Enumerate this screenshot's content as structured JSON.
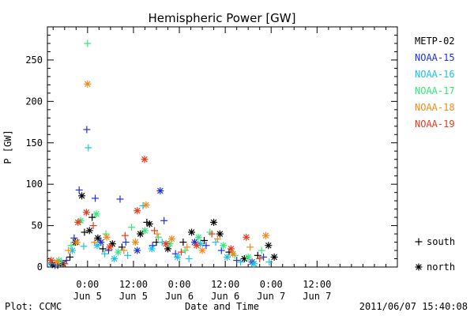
{
  "chart_data": {
    "type": "scatter",
    "title": "Hemispheric Power [GW]",
    "xlabel": "Date and Time",
    "ylabel": "P [GW]",
    "x_unit": "hours",
    "x_range": [
      -10.5,
      81
    ],
    "ylim": [
      0,
      290
    ],
    "y_ticks": [
      0,
      50,
      100,
      150,
      200,
      250
    ],
    "x_ticks": [
      {
        "h": 0,
        "time": "0:00",
        "date": "Jun 5"
      },
      {
        "h": 12,
        "time": "12:00",
        "date": "Jun 5"
      },
      {
        "h": 24,
        "time": "0:00",
        "date": "Jun 6"
      },
      {
        "h": 36,
        "time": "12:00",
        "date": "Jun 6"
      },
      {
        "h": 48,
        "time": "0:00",
        "date": "Jun 7"
      },
      {
        "h": 60,
        "time": "12:00",
        "date": "Jun 7"
      }
    ],
    "grid": false,
    "legend_position": "right",
    "markers": [
      {
        "symbol": "+",
        "label": "south"
      },
      {
        "symbol": "*",
        "label": "north"
      }
    ],
    "series": [
      {
        "name": "METP-02",
        "color": "#000000",
        "points": [
          {
            "x": -9.2,
            "y": 3,
            "m": "*"
          },
          {
            "x": -7.8,
            "y": 2,
            "m": "+"
          },
          {
            "x": -6.4,
            "y": 4,
            "m": "*"
          },
          {
            "x": -4.6,
            "y": 12,
            "m": "+"
          },
          {
            "x": -3.2,
            "y": 30,
            "m": "*"
          },
          {
            "x": -1.5,
            "y": 86,
            "m": "*"
          },
          {
            "x": -0.8,
            "y": 42,
            "m": "+"
          },
          {
            "x": 0.5,
            "y": 44,
            "m": "*"
          },
          {
            "x": 1.2,
            "y": 60,
            "m": "+"
          },
          {
            "x": 2.7,
            "y": 35,
            "m": "*"
          },
          {
            "x": 4.0,
            "y": 22,
            "m": "+"
          },
          {
            "x": 6.5,
            "y": 28,
            "m": "*"
          },
          {
            "x": 9.0,
            "y": 24,
            "m": "+"
          },
          {
            "x": 13.8,
            "y": 40,
            "m": "*"
          },
          {
            "x": 15.5,
            "y": 54,
            "m": "+"
          },
          {
            "x": 16.2,
            "y": 52,
            "m": "*"
          },
          {
            "x": 18.0,
            "y": 30,
            "m": "+"
          },
          {
            "x": 21.0,
            "y": 22,
            "m": "*"
          },
          {
            "x": 25.0,
            "y": 30,
            "m": "+"
          },
          {
            "x": 27.2,
            "y": 42,
            "m": "*"
          },
          {
            "x": 30.5,
            "y": 32,
            "m": "+"
          },
          {
            "x": 33.0,
            "y": 54,
            "m": "*"
          },
          {
            "x": 34.6,
            "y": 40,
            "m": "*"
          },
          {
            "x": 37.0,
            "y": 18,
            "m": "+"
          },
          {
            "x": 41.0,
            "y": 10,
            "m": "*"
          },
          {
            "x": 44.5,
            "y": 14,
            "m": "+"
          },
          {
            "x": 47.3,
            "y": 26,
            "m": "*"
          },
          {
            "x": 48.8,
            "y": 12,
            "m": "*"
          }
        ]
      },
      {
        "name": "NOAA-15",
        "color": "#1f2fd6",
        "points": [
          {
            "x": -8.5,
            "y": 2,
            "m": "+"
          },
          {
            "x": -5.5,
            "y": 8,
            "m": "+"
          },
          {
            "x": -3.5,
            "y": 35,
            "m": "+"
          },
          {
            "x": -2.2,
            "y": 93,
            "m": "+"
          },
          {
            "x": -0.2,
            "y": 166,
            "m": "+"
          },
          {
            "x": 2.0,
            "y": 83,
            "m": "+"
          },
          {
            "x": 3.5,
            "y": 30,
            "m": "*"
          },
          {
            "x": 5.5,
            "y": 20,
            "m": "+"
          },
          {
            "x": 8.5,
            "y": 82,
            "m": "+"
          },
          {
            "x": 10.0,
            "y": 30,
            "m": "+"
          },
          {
            "x": 13.0,
            "y": 20,
            "m": "*"
          },
          {
            "x": 17.0,
            "y": 26,
            "m": "+"
          },
          {
            "x": 19.0,
            "y": 92,
            "m": "*"
          },
          {
            "x": 20.0,
            "y": 56,
            "m": "+"
          },
          {
            "x": 23.0,
            "y": 16,
            "m": "+"
          },
          {
            "x": 28.0,
            "y": 30,
            "m": "*"
          },
          {
            "x": 31.0,
            "y": 26,
            "m": "+"
          },
          {
            "x": 35.0,
            "y": 20,
            "m": "+"
          },
          {
            "x": 39.0,
            "y": 8,
            "m": "+"
          },
          {
            "x": 43.0,
            "y": 6,
            "m": "*"
          },
          {
            "x": 46.0,
            "y": 12,
            "m": "+"
          }
        ]
      },
      {
        "name": "NOAA-16",
        "color": "#19c3e6",
        "points": [
          {
            "x": -9.8,
            "y": 4,
            "m": "+"
          },
          {
            "x": -6.8,
            "y": 6,
            "m": "+"
          },
          {
            "x": -4.0,
            "y": 20,
            "m": "*"
          },
          {
            "x": -1.0,
            "y": 25,
            "m": "+"
          },
          {
            "x": 0.2,
            "y": 144,
            "m": "+"
          },
          {
            "x": 2.5,
            "y": 26,
            "m": "*"
          },
          {
            "x": 4.5,
            "y": 16,
            "m": "+"
          },
          {
            "x": 7.0,
            "y": 10,
            "m": "*"
          },
          {
            "x": 10.5,
            "y": 14,
            "m": "+"
          },
          {
            "x": 14.5,
            "y": 74,
            "m": "+"
          },
          {
            "x": 16.8,
            "y": 22,
            "m": "*"
          },
          {
            "x": 19.5,
            "y": 30,
            "m": "+"
          },
          {
            "x": 23.5,
            "y": 12,
            "m": "*"
          },
          {
            "x": 26.5,
            "y": 10,
            "m": "+"
          },
          {
            "x": 29.5,
            "y": 28,
            "m": "*"
          },
          {
            "x": 33.5,
            "y": 30,
            "m": "+"
          },
          {
            "x": 36.5,
            "y": 12,
            "m": "*"
          },
          {
            "x": 40.0,
            "y": 6,
            "m": "+"
          },
          {
            "x": 43.5,
            "y": 4,
            "m": "*"
          },
          {
            "x": 47.5,
            "y": 6,
            "m": "+"
          }
        ]
      },
      {
        "name": "NOAA-17",
        "color": "#33e67a",
        "points": [
          {
            "x": -7.5,
            "y": 8,
            "m": "*"
          },
          {
            "x": -4.3,
            "y": 26,
            "m": "+"
          },
          {
            "x": -1.8,
            "y": 56,
            "m": "*"
          },
          {
            "x": 0.0,
            "y": 270,
            "m": "+"
          },
          {
            "x": 2.3,
            "y": 64,
            "m": "*"
          },
          {
            "x": 4.8,
            "y": 40,
            "m": "+"
          },
          {
            "x": 8.0,
            "y": 18,
            "m": "*"
          },
          {
            "x": 11.5,
            "y": 48,
            "m": "+"
          },
          {
            "x": 15.0,
            "y": 44,
            "m": "*"
          },
          {
            "x": 18.5,
            "y": 36,
            "m": "+"
          },
          {
            "x": 21.5,
            "y": 28,
            "m": "*"
          },
          {
            "x": 25.5,
            "y": 20,
            "m": "+"
          },
          {
            "x": 29.0,
            "y": 36,
            "m": "*"
          },
          {
            "x": 32.0,
            "y": 42,
            "m": "+"
          },
          {
            "x": 35.5,
            "y": 26,
            "m": "*"
          },
          {
            "x": 38.5,
            "y": 14,
            "m": "+"
          },
          {
            "x": 42.0,
            "y": 12,
            "m": "*"
          },
          {
            "x": 45.5,
            "y": 20,
            "m": "+"
          }
        ]
      },
      {
        "name": "NOAA-18",
        "color": "#f08a1a",
        "points": [
          {
            "x": -8.0,
            "y": 6,
            "m": "*"
          },
          {
            "x": -5.0,
            "y": 20,
            "m": "+"
          },
          {
            "x": -2.8,
            "y": 30,
            "m": "*"
          },
          {
            "x": 0.0,
            "y": 221,
            "m": "*"
          },
          {
            "x": 1.8,
            "y": 30,
            "m": "+"
          },
          {
            "x": 5.0,
            "y": 36,
            "m": "*"
          },
          {
            "x": 9.5,
            "y": 20,
            "m": "+"
          },
          {
            "x": 12.5,
            "y": 30,
            "m": "*"
          },
          {
            "x": 15.3,
            "y": 75,
            "m": "*"
          },
          {
            "x": 18.2,
            "y": 40,
            "m": "+"
          },
          {
            "x": 22.0,
            "y": 34,
            "m": "*"
          },
          {
            "x": 26.0,
            "y": 24,
            "m": "+"
          },
          {
            "x": 30.0,
            "y": 20,
            "m": "*"
          },
          {
            "x": 34.0,
            "y": 34,
            "m": "+"
          },
          {
            "x": 38.0,
            "y": 16,
            "m": "*"
          },
          {
            "x": 42.5,
            "y": 24,
            "m": "+"
          },
          {
            "x": 46.6,
            "y": 38,
            "m": "*"
          }
        ]
      },
      {
        "name": "NOAA-19",
        "color": "#e63a1a",
        "points": [
          {
            "x": -9.5,
            "y": 8,
            "m": "*"
          },
          {
            "x": -6.0,
            "y": 4,
            "m": "+"
          },
          {
            "x": -2.5,
            "y": 54,
            "m": "*"
          },
          {
            "x": -0.3,
            "y": 66,
            "m": "*"
          },
          {
            "x": 1.5,
            "y": 50,
            "m": "+"
          },
          {
            "x": 5.8,
            "y": 24,
            "m": "*"
          },
          {
            "x": 9.8,
            "y": 38,
            "m": "+"
          },
          {
            "x": 13.0,
            "y": 68,
            "m": "*"
          },
          {
            "x": 14.9,
            "y": 130,
            "m": "*"
          },
          {
            "x": 17.5,
            "y": 44,
            "m": "+"
          },
          {
            "x": 20.5,
            "y": 28,
            "m": "*"
          },
          {
            "x": 24.5,
            "y": 18,
            "m": "+"
          },
          {
            "x": 28.5,
            "y": 26,
            "m": "*"
          },
          {
            "x": 32.5,
            "y": 40,
            "m": "+"
          },
          {
            "x": 37.5,
            "y": 22,
            "m": "*"
          },
          {
            "x": 41.5,
            "y": 36,
            "m": "*"
          },
          {
            "x": 45.0,
            "y": 10,
            "m": "+"
          }
        ]
      }
    ]
  },
  "footer": {
    "left": "Plot: CCMC",
    "right": "2011/06/07 15:40:08"
  }
}
